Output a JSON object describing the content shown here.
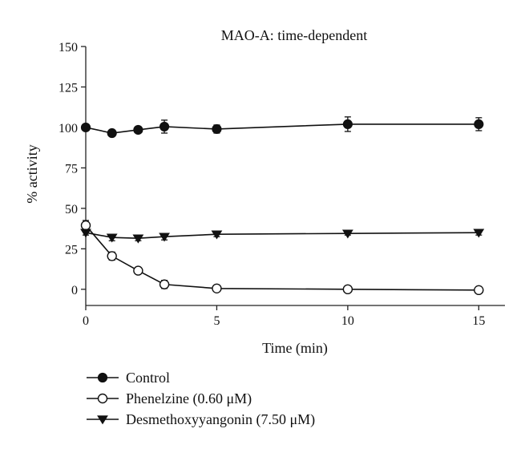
{
  "chart_data": {
    "type": "line",
    "title": "MAO-A: time-dependent",
    "xlabel": "Time (min)",
    "ylabel": "% activity",
    "xlim": [
      0,
      16
    ],
    "ylim": [
      -10,
      150
    ],
    "xticks": [
      "0",
      "5",
      "10",
      "15"
    ],
    "yticks": [
      "0",
      "25",
      "50",
      "75",
      "100",
      "125",
      "150"
    ],
    "grid": false,
    "legend_position": "bottom-left",
    "series": [
      {
        "name": "Control",
        "marker": "filled-circle",
        "color": "#111111",
        "x": [
          0,
          1,
          2,
          3,
          5,
          10,
          15
        ],
        "y": [
          100,
          96.5,
          98.5,
          100.5,
          99,
          102,
          102
        ],
        "err": [
          1.5,
          1.5,
          1.5,
          4,
          2.5,
          4.5,
          4
        ]
      },
      {
        "name": "Phenelzine (0.60 μM)",
        "marker": "open-circle",
        "color": "#111111",
        "x": [
          0,
          1,
          2,
          3,
          5,
          10,
          15
        ],
        "y": [
          39.5,
          20.5,
          11.5,
          3,
          0.5,
          0,
          -0.5
        ],
        "err": [
          3,
          2.5,
          1.5,
          2.5,
          1,
          1,
          1
        ]
      },
      {
        "name": "Desmethoxyyangonin (7.50 μM)",
        "marker": "filled-triangle-down",
        "color": "#111111",
        "x": [
          0,
          1,
          2,
          3,
          5,
          10,
          15
        ],
        "y": [
          35,
          32,
          31.5,
          32.5,
          34,
          34.5,
          35
        ],
        "err": [
          1.5,
          2,
          1.5,
          2,
          1.5,
          1,
          1.5
        ]
      }
    ]
  }
}
